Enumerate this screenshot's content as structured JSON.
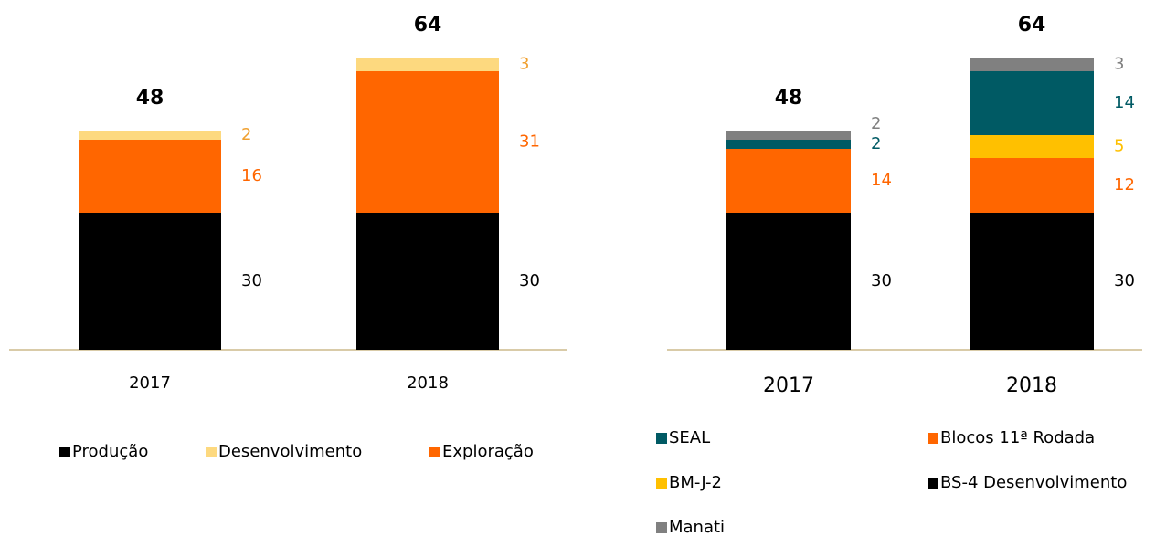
{
  "chart_data": [
    {
      "type": "stacked_bar",
      "categories": [
        "2017",
        "2018"
      ],
      "ylim": [
        0,
        70
      ],
      "totals": [
        48,
        64
      ],
      "series": [
        {
          "name": "Produção",
          "color": "#000000",
          "values": [
            30,
            30
          ]
        },
        {
          "name": "Exploração",
          "color": "#ff6600",
          "values": [
            16,
            31
          ]
        },
        {
          "name": "Desenvolvimento",
          "color": "#fdd97f",
          "values": [
            2,
            3
          ],
          "label_color": "#f0a030"
        }
      ]
    },
    {
      "type": "stacked_bar",
      "categories": [
        "2017",
        "2018"
      ],
      "ylim": [
        0,
        70
      ],
      "totals": [
        48,
        64
      ],
      "series": [
        {
          "name": "BS-4 Desenvolvimento",
          "color": "#000000",
          "values": [
            30,
            30
          ]
        },
        {
          "name": "Blocos 11ª Rodada",
          "color": "#ff6600",
          "values": [
            14,
            12
          ]
        },
        {
          "name": "BM-J-2",
          "color": "#ffc000",
          "values": [
            0,
            5
          ]
        },
        {
          "name": "SEAL",
          "color": "#005a64",
          "values": [
            2,
            14
          ]
        },
        {
          "name": "Manati",
          "color": "#808080",
          "values": [
            2,
            3
          ]
        }
      ]
    }
  ]
}
